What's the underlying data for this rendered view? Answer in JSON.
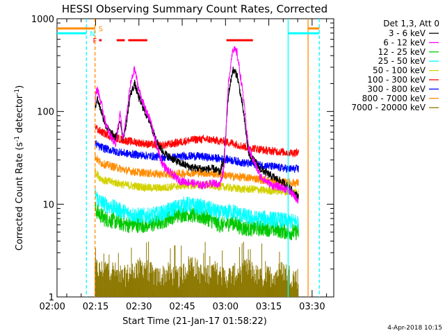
{
  "chart_data": {
    "type": "line",
    "title": "HESSI Observing Summary Count Rates, Corrected",
    "xlabel": "Start Time (21-Jan-17 01:58:22)",
    "ylabel": "Corrected Count Rate (s⁻¹ detector⁻¹)",
    "ylabel_main": "Corrected Count Rate (s",
    "ylabel_sup1": "-1",
    "ylabel_mid": " detector",
    "ylabel_sup2": "-1",
    "ylabel_end": ")",
    "timestamp": "4-Apr-2018 10:15",
    "y_scale": "log",
    "ylim": [
      1,
      1000
    ],
    "xlim_minutes": [
      1.63,
      97.5
    ],
    "x_ticks": [
      {
        "minute": 0,
        "label": "02:00"
      },
      {
        "minute": 15,
        "label": "02:15"
      },
      {
        "minute": 30,
        "label": "02:30"
      },
      {
        "minute": 45,
        "label": "02:45"
      },
      {
        "minute": 60,
        "label": "03:00"
      },
      {
        "minute": 75,
        "label": "03:15"
      },
      {
        "minute": 90,
        "label": "03:30"
      }
    ],
    "y_ticks": [
      {
        "value": 1,
        "label": "1"
      },
      {
        "value": 10,
        "label": "10"
      },
      {
        "value": 100,
        "label": "100"
      },
      {
        "value": 1000,
        "label": "1000"
      }
    ],
    "legend": {
      "header": "Det 1,3, Att 0",
      "position": "right"
    },
    "series": [
      {
        "name": "3 - 6 keV",
        "color": "#000000",
        "x": [
          14.8,
          15.5,
          17,
          18.5,
          20,
          22,
          23.5,
          24.5,
          25.5,
          27,
          28.5,
          30,
          32,
          34,
          36,
          38,
          40,
          44,
          48,
          52,
          56,
          58,
          59.5,
          61,
          62.5,
          64,
          66,
          68,
          72,
          76,
          80,
          82,
          84,
          85.3
        ],
        "y": [
          110,
          140,
          100,
          70,
          60,
          52,
          80,
          52,
          70,
          150,
          200,
          140,
          100,
          75,
          48,
          38,
          33,
          28,
          25,
          24,
          24,
          22,
          30,
          150,
          280,
          250,
          110,
          35,
          24,
          20,
          17,
          15,
          13,
          12
        ]
      },
      {
        "name": "6 - 12 keV",
        "color": "#ff00ff",
        "x": [
          14.8,
          15.5,
          17,
          18.5,
          20,
          22,
          23.5,
          24.5,
          25.5,
          27,
          28.5,
          30,
          32,
          34,
          36,
          38,
          40,
          44,
          48,
          52,
          56,
          58,
          59.5,
          61,
          62.5,
          64,
          66,
          68,
          72,
          76,
          80,
          82,
          84,
          85.3
        ],
        "y": [
          130,
          180,
          120,
          75,
          55,
          45,
          95,
          50,
          80,
          190,
          290,
          170,
          110,
          80,
          45,
          28,
          23,
          18,
          17,
          16,
          17,
          16,
          25,
          200,
          480,
          430,
          160,
          40,
          20,
          16,
          15,
          14,
          12,
          11
        ]
      },
      {
        "name": "12 - 25 keV",
        "color": "#00c800",
        "x": [
          14.8,
          16,
          18,
          22,
          26,
          30,
          34,
          38,
          42,
          46,
          50,
          54,
          58,
          60,
          62,
          64,
          66,
          70,
          74,
          78,
          82,
          85.3
        ],
        "y": [
          9,
          8,
          7,
          6.5,
          6,
          6,
          6,
          6.5,
          7.5,
          8,
          7.5,
          7,
          6,
          6,
          6.5,
          6,
          5.5,
          5.5,
          5.5,
          5.3,
          5,
          5
        ]
      },
      {
        "name": "25 - 50 keV",
        "color": "#00ffff",
        "x": [
          14.8,
          16,
          18,
          22,
          26,
          30,
          34,
          38,
          42,
          46,
          50,
          54,
          58,
          60,
          62,
          64,
          66,
          70,
          74,
          78,
          82,
          85.3
        ],
        "y": [
          13,
          11,
          10,
          9,
          8,
          7.5,
          7.5,
          8,
          9,
          10,
          9.5,
          9,
          8,
          8,
          8.5,
          8,
          7.5,
          7,
          7,
          6.8,
          6.5,
          6.5
        ]
      },
      {
        "name": "50 - 100 keV",
        "color": "#d2d200",
        "x": [
          14.8,
          16,
          18,
          22,
          26,
          30,
          34,
          38,
          42,
          46,
          50,
          54,
          58,
          62,
          66,
          70,
          74,
          78,
          82,
          85.3
        ],
        "y": [
          23,
          20,
          18,
          17,
          16,
          15.5,
          15,
          15,
          15.5,
          16,
          16,
          16,
          15.5,
          15,
          14.5,
          14.5,
          14,
          14,
          13.5,
          13.5
        ]
      },
      {
        "name": "100 - 300 keV",
        "color": "#ff0000",
        "x": [
          14.8,
          16,
          18,
          22,
          26,
          30,
          34,
          38,
          42,
          46,
          50,
          54,
          58,
          62,
          66,
          70,
          74,
          78,
          82,
          85.3
        ],
        "y": [
          70,
          62,
          58,
          52,
          48,
          46,
          44,
          43,
          45,
          48,
          50,
          50,
          48,
          46,
          42,
          40,
          38,
          37,
          36,
          36
        ]
      },
      {
        "name": "300 - 800 keV",
        "color": "#0000ff",
        "x": [
          14.8,
          16,
          18,
          22,
          26,
          30,
          34,
          38,
          42,
          46,
          50,
          54,
          58,
          62,
          66,
          70,
          74,
          78,
          82,
          85.3
        ],
        "y": [
          46,
          42,
          40,
          37,
          35,
          34,
          33,
          32,
          32,
          33,
          33,
          32,
          31,
          30,
          28,
          27,
          26,
          25,
          24,
          24
        ]
      },
      {
        "name": "800 - 7000 keV",
        "color": "#ff8c00",
        "x": [
          14.8,
          16,
          18,
          22,
          26,
          30,
          34,
          38,
          42,
          46,
          50,
          54,
          58,
          62,
          66,
          70,
          74,
          78,
          82,
          85.3
        ],
        "y": [
          33,
          29,
          27,
          25,
          23,
          22,
          21.5,
          21,
          21,
          21.5,
          22,
          21.5,
          21,
          20,
          19.5,
          19,
          18,
          17.5,
          17,
          17
        ]
      },
      {
        "name": "7000 - 20000 keV",
        "color": "#8c7800",
        "x": [
          14.8,
          16,
          20,
          24,
          28,
          32,
          36,
          40,
          44,
          48,
          52,
          56,
          60,
          64,
          68,
          72,
          76,
          80,
          84,
          85.3
        ],
        "y": [
          2,
          1.8,
          1.9,
          1.5,
          1.8,
          2,
          1.5,
          1.7,
          1.5,
          2.2,
          1.6,
          1.8,
          1.5,
          1.7,
          1.9,
          1.5,
          1.6,
          1.8,
          1.5,
          1.5
        ]
      }
    ],
    "flag_bars": [
      {
        "label": "S",
        "color": "#ff8c00",
        "segments": [
          [
            1.63,
            14.8
          ],
          [
            88.6,
            92.5
          ]
        ]
      },
      {
        "label": "N",
        "color": "#00ffff",
        "segments": [
          [
            1.63,
            11.8
          ],
          [
            81.7,
            92.5
          ]
        ]
      },
      {
        "label": "F",
        "color": "#ff0000",
        "segments": [
          [
            16.2,
            17.1
          ],
          [
            22.3,
            25.1
          ],
          [
            26.3,
            32.9
          ],
          [
            60.3,
            69.5
          ]
        ]
      }
    ],
    "vertical_markers": [
      {
        "minute": 11.8,
        "color": "#00ffff",
        "style": "dashed"
      },
      {
        "minute": 14.8,
        "color": "#ff8c00",
        "style": "dashed"
      },
      {
        "minute": 81.7,
        "color": "#00ffff",
        "style": "solid"
      },
      {
        "minute": 88.6,
        "color": "#ff8c00",
        "style": "solid"
      },
      {
        "minute": 92.5,
        "color": "#00ffff",
        "style": "dashed"
      }
    ]
  }
}
